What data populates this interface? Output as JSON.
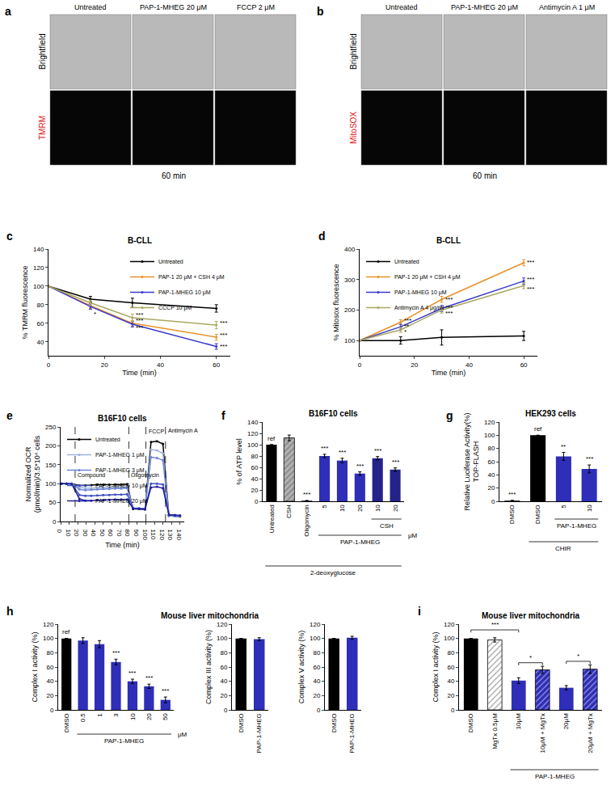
{
  "chart_data": [
    {
      "panel": "a",
      "type": "image",
      "columns": [
        "Untreated",
        "PAP-1-MHEG 20 μM",
        "FCCP 2 μM"
      ],
      "rows": [
        {
          "name": "Brightfield",
          "color": "#000000"
        },
        {
          "name": "TMRM",
          "color": "#e0201b"
        }
      ],
      "footer": "60 min"
    },
    {
      "panel": "b",
      "type": "image",
      "columns": [
        "Untreated",
        "PAP-1-MHEG 20 μM",
        "Antimycin A 1 μM"
      ],
      "rows": [
        {
          "name": "Brightfield",
          "color": "#000000"
        },
        {
          "name": "MitoSOX",
          "color": "#e0201b"
        }
      ],
      "footer": "60 min"
    },
    {
      "panel": "c",
      "type": "line",
      "title": "B-CLL",
      "x_label": "Time (min)",
      "y_label": "% TMRM fluorescence",
      "x": [
        0,
        15,
        30,
        60
      ],
      "xlim": [
        0,
        65
      ],
      "xticks": [
        0,
        20,
        40,
        60
      ],
      "ylim": [
        25,
        140
      ],
      "yticks": [
        40,
        60,
        80,
        100,
        120,
        140
      ],
      "grid": false,
      "legend": "upper right",
      "series": [
        {
          "name": "Untreated",
          "color": "#000000",
          "values": [
            100,
            86,
            82,
            76
          ],
          "errors": [
            0,
            3,
            5,
            4
          ]
        },
        {
          "name": "PAP-1 20 μM + CSH 4 μM",
          "color": "#e8922a",
          "values": [
            100,
            79,
            60,
            45
          ],
          "errors": [
            0,
            3,
            3,
            3
          ]
        },
        {
          "name": "PAP-1-MHEG 10 μM",
          "color": "#3a3ac8",
          "values": [
            100,
            78,
            59,
            35
          ],
          "errors": [
            0,
            3,
            3,
            3
          ]
        },
        {
          "name": "CCCP 10 μM",
          "color": "#a8a860",
          "values": [
            100,
            82,
            66,
            58
          ],
          "errors": [
            0,
            3,
            4,
            4
          ]
        }
      ],
      "annotations": [
        {
          "x": 15,
          "y": 70,
          "text": "*"
        },
        {
          "x": 30,
          "y": 69,
          "text": "***"
        },
        {
          "x": 30,
          "y": 63,
          "text": "***"
        },
        {
          "x": 30,
          "y": 55,
          "text": "***"
        },
        {
          "x": 60,
          "y": 60,
          "text": "***"
        },
        {
          "x": 60,
          "y": 47,
          "text": "***"
        },
        {
          "x": 60,
          "y": 35,
          "text": "***"
        }
      ]
    },
    {
      "panel": "d",
      "type": "line",
      "title": "B-CLL",
      "x_label": "Time (min)",
      "y_label": "% Mitosox fluorescence",
      "x": [
        0,
        15,
        30,
        60
      ],
      "xlim": [
        0,
        65
      ],
      "xticks": [
        0,
        20,
        40,
        60
      ],
      "ylim": [
        50,
        400
      ],
      "yticks": [
        100,
        200,
        300,
        400
      ],
      "grid": false,
      "legend": "upper left",
      "series": [
        {
          "name": "Untreated",
          "color": "#000000",
          "values": [
            100,
            100,
            110,
            115
          ],
          "errors": [
            0,
            12,
            25,
            15
          ]
        },
        {
          "name": "PAP-1 20 μM + CSH 4 μM",
          "color": "#e8922a",
          "values": [
            100,
            160,
            235,
            355
          ],
          "errors": [
            0,
            8,
            10,
            10
          ]
        },
        {
          "name": "PAP-1-MHEG 10 μM",
          "color": "#3a3ac8",
          "values": [
            100,
            145,
            205,
            295
          ],
          "errors": [
            0,
            8,
            10,
            10
          ]
        },
        {
          "name": "Antimycin A 4 μg/ml",
          "color": "#a8a860",
          "values": [
            100,
            135,
            200,
            280
          ],
          "errors": [
            0,
            8,
            10,
            10
          ]
        }
      ],
      "annotations": [
        {
          "x": 15,
          "y": 165,
          "text": "***"
        },
        {
          "x": 15,
          "y": 148,
          "text": "**"
        },
        {
          "x": 15,
          "y": 128,
          "text": "*"
        },
        {
          "x": 30,
          "y": 235,
          "text": "***"
        },
        {
          "x": 30,
          "y": 208,
          "text": "***"
        },
        {
          "x": 30,
          "y": 190,
          "text": "***"
        },
        {
          "x": 60,
          "y": 355,
          "text": "***"
        },
        {
          "x": 60,
          "y": 300,
          "text": "***"
        },
        {
          "x": 60,
          "y": 270,
          "text": "***"
        }
      ]
    },
    {
      "panel": "e",
      "type": "line",
      "title": "B16F10 cells",
      "x_label": "Time (min)",
      "y_label": "Normalized OCR\n(pmol/min)/3.5*10⁴ cells",
      "x": [
        1,
        7,
        13,
        22,
        29,
        36,
        43,
        50,
        57,
        64,
        71,
        78,
        85,
        92,
        99,
        106,
        113,
        120,
        127,
        134,
        140
      ],
      "xlim": [
        0,
        145
      ],
      "xticks": [
        0,
        10,
        20,
        30,
        40,
        50,
        60,
        70,
        80,
        90,
        100,
        110,
        120,
        130,
        140
      ],
      "ylim": [
        0,
        250
      ],
      "yticks": [
        0,
        50,
        100,
        150,
        200,
        250
      ],
      "grid": false,
      "legend": "upper left",
      "series": [
        {
          "name": "Untreated",
          "color": "#000000",
          "values": [
            100,
            100,
            100,
            95,
            95,
            96,
            97,
            97,
            97,
            98,
            98,
            99,
            33,
            33,
            32,
            210,
            212,
            205,
            15,
            14,
            13
          ]
        },
        {
          "name": "PAP-1-MHEG 1 μM",
          "color": "#9fb2dc",
          "values": [
            100,
            100,
            100,
            90,
            88,
            88,
            89,
            90,
            90,
            91,
            91,
            91,
            35,
            34,
            33,
            190,
            188,
            180,
            15,
            14,
            13
          ]
        },
        {
          "name": "PAP-1-MHEG 3 μM",
          "color": "#6f84d2",
          "values": [
            100,
            100,
            100,
            85,
            83,
            84,
            85,
            86,
            86,
            87,
            87,
            88,
            36,
            35,
            34,
            170,
            168,
            162,
            16,
            15,
            14
          ]
        },
        {
          "name": "PAP-1-MHEG 10 μM",
          "color": "#3f50c0",
          "values": [
            100,
            100,
            100,
            70,
            68,
            68,
            69,
            70,
            70,
            71,
            71,
            72,
            35,
            34,
            33,
            100,
            100,
            98,
            17,
            16,
            15
          ]
        },
        {
          "name": "PAP-1-MHEG 20 μM",
          "color": "#1f1f9c",
          "values": [
            100,
            100,
            99,
            60,
            55,
            55,
            56,
            56,
            57,
            58,
            58,
            58,
            34,
            33,
            32,
            90,
            92,
            88,
            18,
            17,
            16
          ]
        }
      ],
      "vlines": [
        {
          "x": 17,
          "y": 108,
          "text": "Compound"
        },
        {
          "x": 80,
          "y": 108,
          "text": "Oligomycin"
        },
        {
          "x": 100,
          "y": 226,
          "text": "FCCP"
        },
        {
          "x": 123,
          "y": 226,
          "text": "Antimycin A"
        }
      ]
    },
    {
      "panel": "f",
      "type": "bar",
      "title": "B16F10 cells",
      "y_label": "% of ATP level",
      "categories": [
        "Untreated",
        "CSH",
        "Oligomycin",
        "5",
        "10",
        "20",
        "10",
        "20"
      ],
      "ylim": [
        0,
        140
      ],
      "yticks": [
        0,
        20,
        40,
        60,
        80,
        100,
        120,
        140
      ],
      "grid": false,
      "series": [
        {
          "values": [
            100,
            null,
            1,
            80,
            72,
            49,
            76,
            56
          ],
          "errors": [
            0,
            null,
            0.5,
            3,
            4,
            3,
            3,
            3
          ],
          "colors": [
            "#000000",
            null,
            "#000000",
            "#2e2eb8",
            "#2e2eb8",
            "#2e2eb8",
            "#23238a",
            "#23238a"
          ]
        },
        {
          "marker": "hatch",
          "values": [
            null,
            112,
            null,
            null,
            null,
            null,
            null,
            null
          ],
          "errors": [
            null,
            5,
            null,
            null,
            null,
            null,
            null,
            null
          ],
          "colors": [
            null,
            "#b0b0b0",
            null,
            null,
            null,
            null,
            null,
            null
          ]
        }
      ],
      "annotations": [
        {
          "x": 0,
          "y": 102,
          "text": "ref"
        },
        {
          "x": 2,
          "y": 3,
          "text": "***"
        },
        {
          "x": 3,
          "y": 84,
          "text": "***"
        },
        {
          "x": 4,
          "y": 77,
          "text": "***"
        },
        {
          "x": 5,
          "y": 53,
          "text": "***"
        },
        {
          "x": 6,
          "y": 80,
          "text": "***"
        },
        {
          "x": 7,
          "y": 60,
          "text": "***"
        }
      ],
      "groups": [
        {
          "from": 6,
          "to": 7,
          "label": "CSH"
        },
        {
          "from": 3,
          "to": 7,
          "label": "PAP-1-MHEG"
        },
        {
          "from": 0,
          "to": 7,
          "label": "2-deoxyglucose"
        }
      ],
      "unit": "μM"
    },
    {
      "panel": "g",
      "type": "bar",
      "title": "HEK293 cells",
      "y_label": "Relative Luciferase Activity(%)\nTOP-FLASH",
      "categories": [
        "DMSO",
        "DMSO",
        "5",
        "10"
      ],
      "ylim": [
        0,
        120
      ],
      "yticks": [
        0,
        20,
        40,
        60,
        80,
        100,
        120
      ],
      "grid": false,
      "series": [
        {
          "values": [
            1,
            100,
            68,
            49
          ],
          "errors": [
            0.5,
            0,
            6,
            6
          ],
          "colors": [
            "#000000",
            "#000000",
            "#2e2eb8",
            "#2e2eb8"
          ]
        }
      ],
      "annotations": [
        {
          "x": 0,
          "y": 3,
          "text": "***"
        },
        {
          "x": 1,
          "y": 102,
          "text": "ref"
        },
        {
          "x": 2,
          "y": 75,
          "text": "**"
        },
        {
          "x": 3,
          "y": 56,
          "text": "***"
        }
      ],
      "groups": [
        {
          "from": 2,
          "to": 3,
          "label": "PAP-1-MHEG"
        },
        {
          "from": 1,
          "to": 3,
          "label": "CHIR"
        }
      ]
    },
    {
      "panel": "h",
      "type": "group",
      "title": "Mouse liver mitochondria",
      "charts": [
        {
          "type": "bar",
          "y_label": "Complex I activity (%)",
          "categories": [
            "DMSO",
            "0.5",
            "1",
            "3",
            "10",
            "20",
            "50"
          ],
          "ylim": [
            0,
            120
          ],
          "yticks": [
            0,
            20,
            40,
            60,
            80,
            100,
            120
          ],
          "grid": false,
          "series": [
            {
              "values": [
                100,
                97,
                92,
                67,
                40,
                33,
                14
              ],
              "errors": [
                0,
                4,
                5,
                4,
                3,
                3,
                4
              ],
              "colors": [
                "#000000",
                "#2e2eb8",
                "#2e2eb8",
                "#2e2eb8",
                "#2e2eb8",
                "#2e2eb8",
                "#2e2eb8"
              ]
            }
          ],
          "annotations": [
            {
              "x": 0,
              "y": 102,
              "text": "ref"
            },
            {
              "x": 3,
              "y": 72,
              "text": "***"
            },
            {
              "x": 4,
              "y": 44,
              "text": "***"
            },
            {
              "x": 5,
              "y": 37,
              "text": "***"
            },
            {
              "x": 6,
              "y": 19,
              "text": "***"
            }
          ],
          "groups": [
            {
              "from": 1,
              "to": 6,
              "label": "PAP-1-MHEG"
            }
          ],
          "unit": "μM"
        },
        {
          "type": "bar",
          "y_label": "Complex III activity (%)",
          "categories": [
            "DMSO",
            "PAP-1-MHEG"
          ],
          "ylim": [
            0,
            120
          ],
          "yticks": [
            0,
            20,
            40,
            60,
            80,
            100,
            120
          ],
          "grid": false,
          "series": [
            {
              "values": [
                100,
                99
              ],
              "errors": [
                0,
                2
              ],
              "colors": [
                "#000000",
                "#2e2eb8"
              ]
            }
          ]
        },
        {
          "type": "bar",
          "y_label": "Complex V activity (%)",
          "categories": [
            "DMSO",
            "PAP-1-MHEG"
          ],
          "ylim": [
            0,
            120
          ],
          "yticks": [
            0,
            20,
            40,
            60,
            80,
            100,
            120
          ],
          "grid": false,
          "series": [
            {
              "values": [
                100,
                101
              ],
              "errors": [
                0,
                2
              ],
              "colors": [
                "#000000",
                "#2e2eb8"
              ]
            }
          ]
        }
      ]
    },
    {
      "panel": "i",
      "type": "bar",
      "title": "Mouse liver mitochondria",
      "y_label": "Complex I activity (%)",
      "categories": [
        "DMSO",
        "MgTx 0.5μM",
        "10μM",
        "10μM + MgTx",
        "20μM",
        "20μM + MgTx"
      ],
      "ylim": [
        0,
        120
      ],
      "yticks": [
        0,
        20,
        40,
        60,
        80,
        100,
        120
      ],
      "grid": false,
      "series": [
        {
          "values": [
            100,
            null,
            41,
            null,
            31,
            null
          ],
          "errors": [
            0,
            null,
            4,
            null,
            3,
            null
          ],
          "colors": [
            "#000000",
            null,
            "#2e2eb8",
            null,
            "#2e2eb8",
            null
          ]
        },
        {
          "marker": "hatch",
          "values": [
            null,
            98,
            null,
            56,
            null,
            57
          ],
          "errors": [
            null,
            3,
            null,
            5,
            null,
            6
          ],
          "colors": [
            null,
            "#ffffff",
            null,
            "#2e2eb8",
            null,
            "#2e2eb8"
          ]
        }
      ],
      "brackets": [
        {
          "from": 0,
          "to": 2,
          "y": 112,
          "text": "***"
        },
        {
          "from": 2,
          "to": 3,
          "y": 66,
          "text": "*"
        },
        {
          "from": 4,
          "to": 5,
          "y": 68,
          "text": "*"
        }
      ],
      "groups": [
        {
          "from": 2,
          "to": 5,
          "label": "PAP-1-MHEG"
        }
      ]
    }
  ]
}
